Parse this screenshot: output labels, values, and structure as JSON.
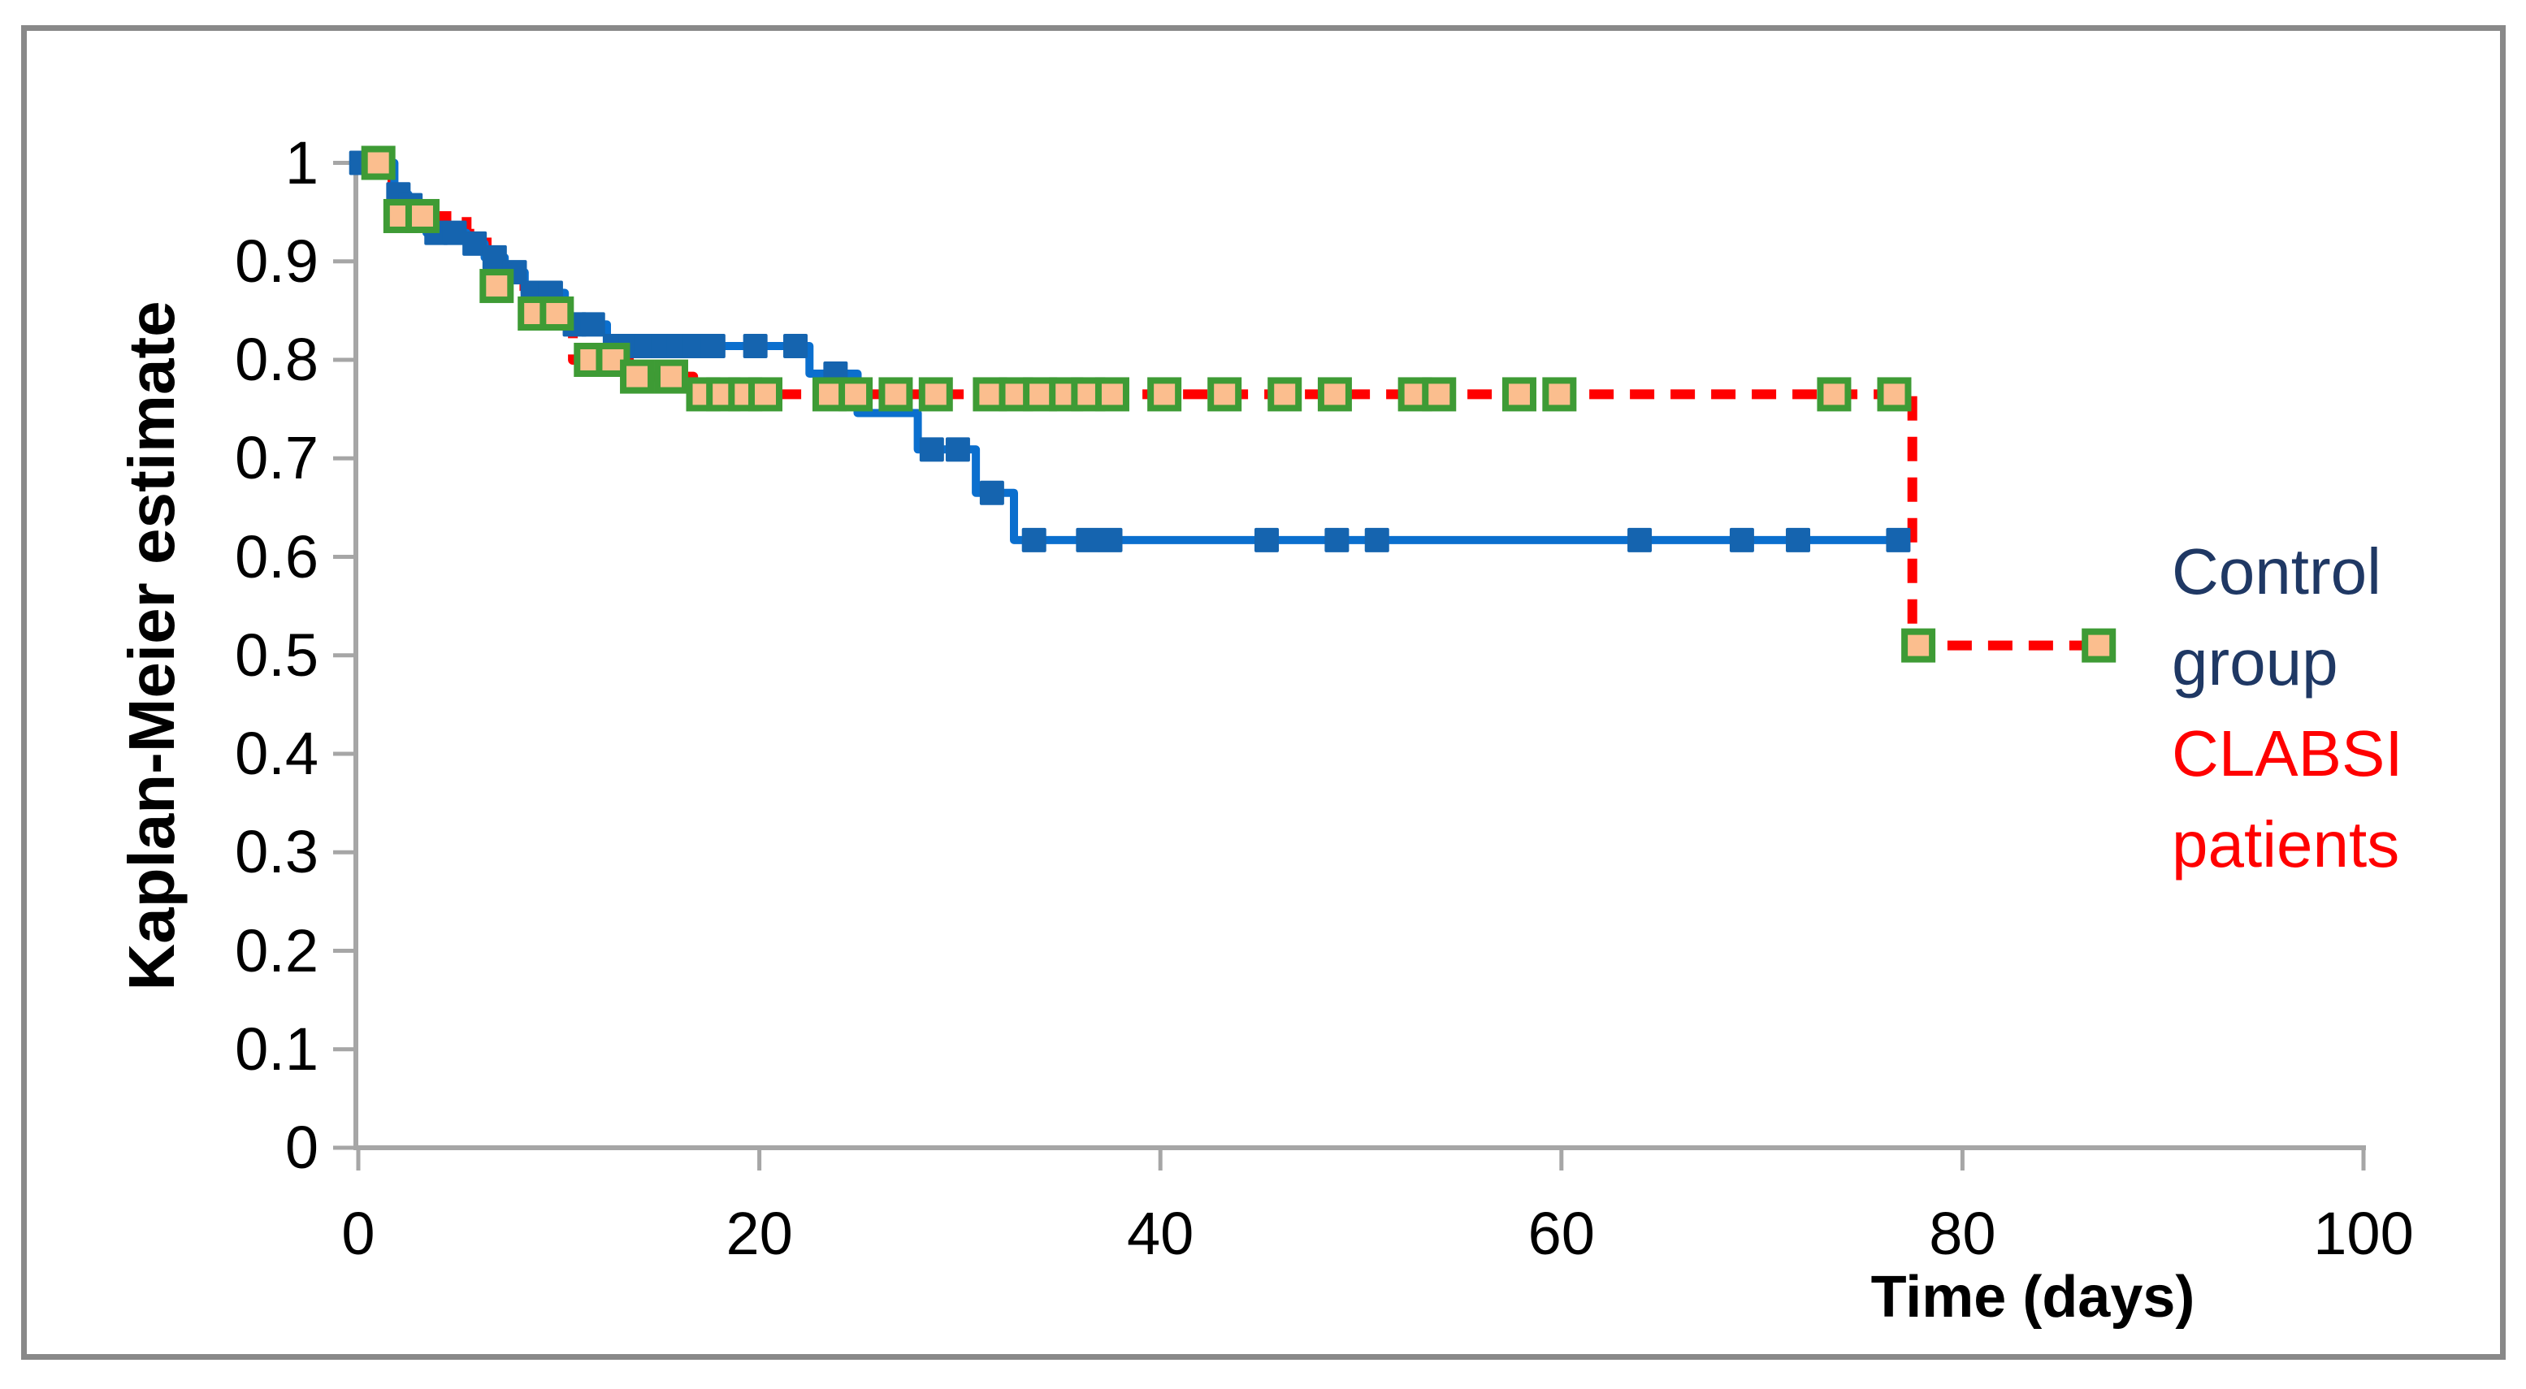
{
  "figure": {
    "background": "#ffffff",
    "border_color": "#898989"
  },
  "axes": {
    "y": {
      "title": "Kaplan-Meier estimate",
      "tick_labels": [
        "1",
        "0.9",
        "0.8",
        "0.7",
        "0.6",
        "0.5",
        "0.4",
        "0.3",
        "0.2",
        "0.1",
        "0"
      ],
      "tick_values": [
        1,
        0.9,
        0.8,
        0.7,
        0.6,
        0.5,
        0.4,
        0.3,
        0.2,
        0.1,
        0
      ],
      "range": [
        0,
        1
      ],
      "color": "#a6a6a6"
    },
    "x": {
      "title": "Time (days)",
      "tick_labels": [
        "0",
        "20",
        "40",
        "60",
        "80",
        "100"
      ],
      "tick_values": [
        0,
        20,
        40,
        60,
        80,
        100
      ],
      "range": [
        0,
        100
      ],
      "color": "#a6a6a6"
    }
  },
  "legend": {
    "entries": [
      {
        "label": "Control group",
        "color": "#1f3864"
      },
      {
        "label": "CLABSI patients",
        "color": "#ff0000"
      }
    ],
    "position": "right"
  },
  "chart_data": {
    "type": "line",
    "subtype": "kaplan-meier-step",
    "title": "",
    "xlabel": "Time (days)",
    "ylabel": "Kaplan-Meier estimate",
    "xlim": [
      0,
      100
    ],
    "ylim": [
      0,
      1
    ],
    "grid": false,
    "series": [
      {
        "name": "Control group",
        "line_style": "solid",
        "line_color": "#0b6fce",
        "marker": "square",
        "marker_color": "#1564af",
        "steps": [
          [
            0,
            1.0
          ],
          [
            1.8,
            0.968
          ],
          [
            2.5,
            0.957
          ],
          [
            3.4,
            0.929
          ],
          [
            5.4,
            0.918
          ],
          [
            6.3,
            0.904
          ],
          [
            7.3,
            0.889
          ],
          [
            8.3,
            0.868
          ],
          [
            10.3,
            0.836
          ],
          [
            12.4,
            0.814
          ],
          [
            22.5,
            0.786
          ],
          [
            24.9,
            0.746
          ],
          [
            27.9,
            0.709
          ],
          [
            30.8,
            0.665
          ],
          [
            32.7,
            0.617
          ]
        ],
        "end_x": 77.2,
        "markers": [
          [
            0.15,
            1.0
          ],
          [
            2.0,
            0.968
          ],
          [
            2.6,
            0.957
          ],
          [
            3.9,
            0.929
          ],
          [
            4.8,
            0.929
          ],
          [
            5.8,
            0.918
          ],
          [
            6.8,
            0.904
          ],
          [
            7.8,
            0.889
          ],
          [
            8.7,
            0.868
          ],
          [
            9.6,
            0.868
          ],
          [
            10.8,
            0.836
          ],
          [
            11.7,
            0.836
          ],
          [
            12.8,
            0.814
          ],
          [
            13.6,
            0.814
          ],
          [
            14.4,
            0.814
          ],
          [
            15.2,
            0.814
          ],
          [
            16.0,
            0.814
          ],
          [
            16.8,
            0.814
          ],
          [
            17.7,
            0.814
          ],
          [
            19.8,
            0.814
          ],
          [
            21.8,
            0.814
          ],
          [
            23.8,
            0.786
          ],
          [
            28.6,
            0.709
          ],
          [
            29.9,
            0.709
          ],
          [
            31.6,
            0.665
          ],
          [
            33.7,
            0.617
          ],
          [
            36.4,
            0.617
          ],
          [
            37.5,
            0.617
          ],
          [
            45.3,
            0.617
          ],
          [
            48.8,
            0.617
          ],
          [
            50.8,
            0.617
          ],
          [
            63.9,
            0.617
          ],
          [
            69.0,
            0.617
          ],
          [
            71.8,
            0.617
          ],
          [
            76.8,
            0.617
          ]
        ]
      },
      {
        "name": "CLABSI patients",
        "line_style": "dashed",
        "line_color": "#ff0000",
        "marker": "square",
        "marker_fill": "#fbbe8e",
        "marker_border": "#3e9b35",
        "steps": [
          [
            0,
            1.0
          ],
          [
            1.7,
            0.946
          ],
          [
            5.4,
            0.928
          ],
          [
            6.4,
            0.908
          ],
          [
            6.9,
            0.875
          ],
          [
            8.4,
            0.847
          ],
          [
            10.7,
            0.8
          ],
          [
            13.5,
            0.783
          ],
          [
            16.7,
            0.765
          ],
          [
            77.5,
            0.51
          ]
        ],
        "end_x": 87.3,
        "markers": [
          [
            1.0,
            1.0
          ],
          [
            2.1,
            0.946
          ],
          [
            3.2,
            0.946
          ],
          [
            6.9,
            0.875
          ],
          [
            8.8,
            0.847
          ],
          [
            9.9,
            0.847
          ],
          [
            11.6,
            0.8
          ],
          [
            12.7,
            0.8
          ],
          [
            13.9,
            0.783
          ],
          [
            15.6,
            0.783
          ],
          [
            17.2,
            0.765
          ],
          [
            18.2,
            0.765
          ],
          [
            19.3,
            0.765
          ],
          [
            20.3,
            0.765
          ],
          [
            23.5,
            0.765
          ],
          [
            24.8,
            0.765
          ],
          [
            26.8,
            0.765
          ],
          [
            28.8,
            0.765
          ],
          [
            31.5,
            0.765
          ],
          [
            32.8,
            0.765
          ],
          [
            34.0,
            0.765
          ],
          [
            35.3,
            0.765
          ],
          [
            36.4,
            0.765
          ],
          [
            37.6,
            0.765
          ],
          [
            40.2,
            0.765
          ],
          [
            43.2,
            0.765
          ],
          [
            46.2,
            0.765
          ],
          [
            48.7,
            0.765
          ],
          [
            52.7,
            0.765
          ],
          [
            53.9,
            0.765
          ],
          [
            57.9,
            0.765
          ],
          [
            59.9,
            0.765
          ],
          [
            73.6,
            0.765
          ],
          [
            76.6,
            0.765
          ],
          [
            77.8,
            0.51
          ],
          [
            86.8,
            0.51
          ]
        ]
      }
    ]
  }
}
